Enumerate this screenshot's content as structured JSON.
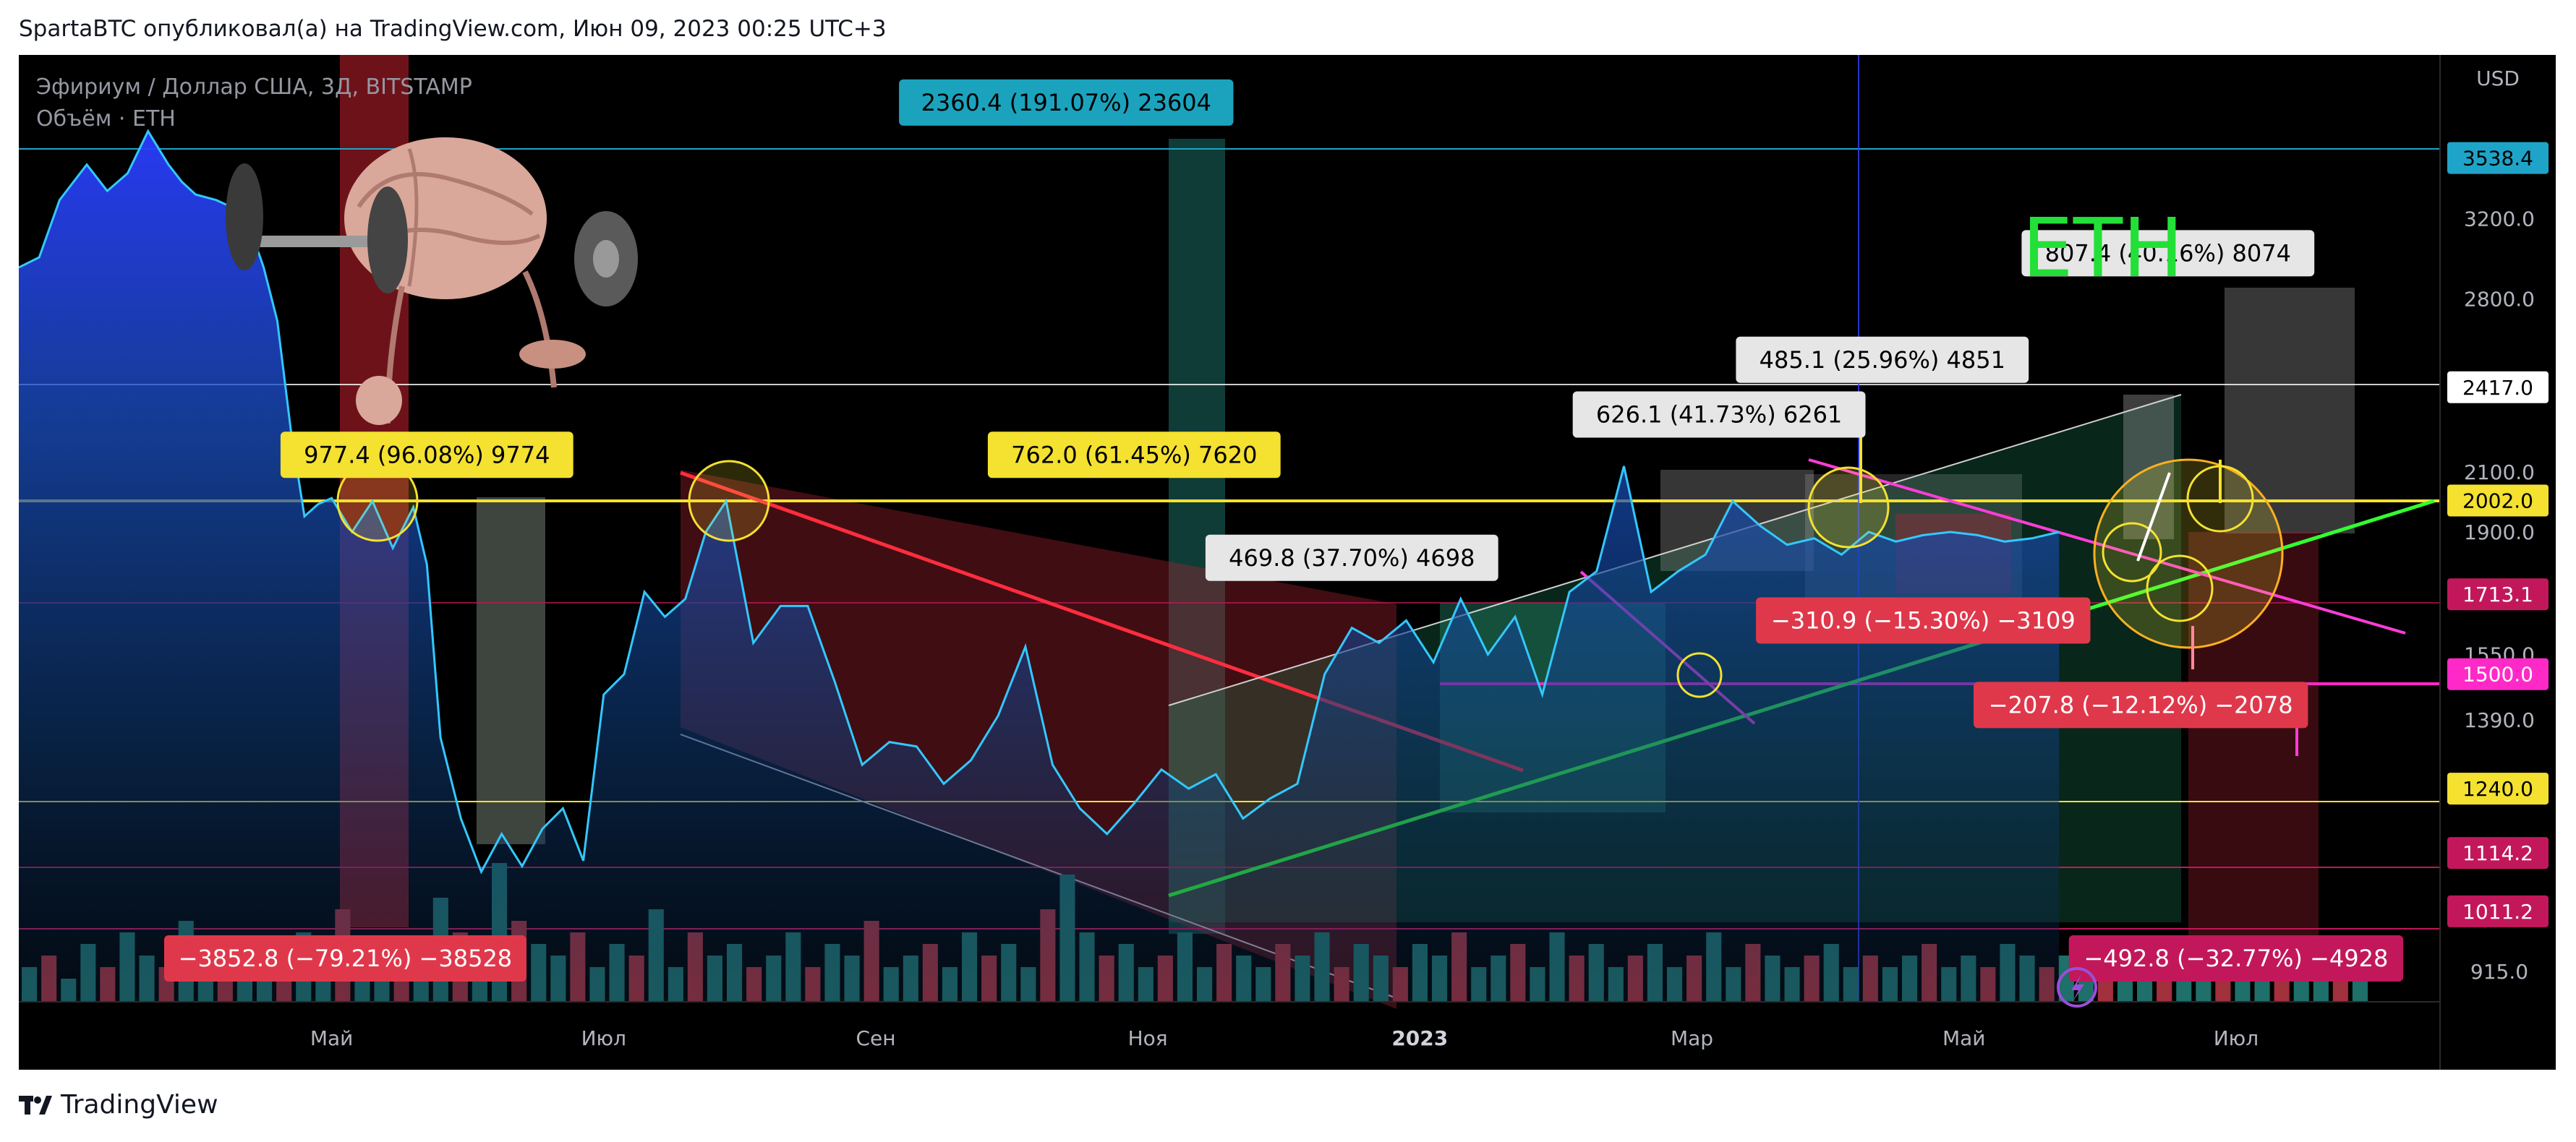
{
  "header": {
    "text": "SpartaBTC опубликовал(а) на TradingView.com, Июн 09, 2023 00:25 UTC+3"
  },
  "footer": {
    "brand": "TradingView"
  },
  "chart": {
    "symbol_line": "Эфириум / Доллар США, 3Д, BITSTAMP",
    "volume_line": "Объём · ETH",
    "currency": "USD",
    "big_label": "ETH",
    "big_label_color": "#22e037"
  },
  "chart_data": {
    "type": "area",
    "symbol": "ETH/USD",
    "y_scale": "log",
    "ylim": [
      870,
      4200
    ],
    "x_ticks": [
      {
        "label": "Май",
        "x": 7.3
      },
      {
        "label": "Июл",
        "x": 9.3
      },
      {
        "label": "Сен",
        "x": 11.3
      },
      {
        "label": "Ноя",
        "x": 13.3
      },
      {
        "label": "2023",
        "x": 15.3
      },
      {
        "label": "Мар",
        "x": 17.3
      },
      {
        "label": "Май",
        "x": 19.3
      },
      {
        "label": "Июл",
        "x": 21.3
      }
    ],
    "y_ticks": [
      915,
      1390,
      1550,
      1900,
      2100,
      2800,
      3200
    ],
    "price_labels": [
      {
        "value": 3538.4,
        "text": "3538.4",
        "bg": "#1ea4c8",
        "fg": "#000000"
      },
      {
        "value": 2417.0,
        "text": "2417.0",
        "bg": "#ffffff",
        "fg": "#000000"
      },
      {
        "value": 2002.0,
        "text": "2002.0",
        "bg": "#f4e130",
        "fg": "#000000"
      },
      {
        "value": 1713.1,
        "text": "1713.1",
        "bg": "#c2185b",
        "fg": "#ffffff"
      },
      {
        "value": 1500.0,
        "text": "1500.0",
        "bg": "#ff29c8",
        "fg": "#ffffff"
      },
      {
        "value": 1240.0,
        "text": "1240.0",
        "bg": "#f4e130",
        "fg": "#000000"
      },
      {
        "value": 1114.2,
        "text": "1114.2",
        "bg": "#c2185b",
        "fg": "#ffffff"
      },
      {
        "value": 1011.2,
        "text": "1011.2",
        "bg": "#c2185b",
        "fg": "#ffffff"
      }
    ],
    "measure_labels": [
      {
        "text": "2360.4 (191.07%) 23604",
        "x": 12.7,
        "y": 3880,
        "bg": "#1ba3bd",
        "fg": "#000000"
      },
      {
        "text": "977.4 (96.08%) 9774",
        "x": 8.0,
        "y": 2160,
        "bg": "#f4e130",
        "fg": "#000000"
      },
      {
        "text": "762.0 (61.45%) 7620",
        "x": 13.2,
        "y": 2160,
        "bg": "#f4e130",
        "fg": "#000000"
      },
      {
        "text": "469.8 (37.70%) 4698",
        "x": 14.8,
        "y": 1820,
        "bg": "#e6e6e6",
        "fg": "#000000"
      },
      {
        "text": "626.1 (41.73%) 6261",
        "x": 17.5,
        "y": 2310,
        "bg": "#e6e6e6",
        "fg": "#000000"
      },
      {
        "text": "485.1 (25.96%) 4851",
        "x": 18.7,
        "y": 2530,
        "bg": "#e6e6e6",
        "fg": "#000000"
      },
      {
        "text": "807.4 (40.16%) 8074",
        "x": 20.8,
        "y": 3020,
        "bg": "#e6e6e6",
        "fg": "#000000"
      },
      {
        "text": "−310.9 (−15.30%) −3109",
        "x": 19.0,
        "y": 1640,
        "bg": "#e0384b",
        "fg": "#ffffff"
      },
      {
        "text": "−207.8 (−12.12%) −2078",
        "x": 20.6,
        "y": 1425,
        "bg": "#e0384b",
        "fg": "#ffffff"
      },
      {
        "text": "−3852.8 (−79.21%) −38528",
        "x": 7.4,
        "y": 935,
        "bg": "#e0384b",
        "fg": "#ffffff"
      },
      {
        "text": "−492.8 (−32.77%) −4928",
        "x": 21.3,
        "y": 935,
        "bg": "#c2185b",
        "fg": "#ffffff"
      }
    ],
    "series": [
      {
        "name": "ETH",
        "x": [
          5.0,
          5.15,
          5.3,
          5.5,
          5.65,
          5.8,
          5.95,
          6.1,
          6.2,
          6.3,
          6.45,
          6.6,
          6.7,
          6.8,
          6.9,
          7.0,
          7.1,
          7.2,
          7.3,
          7.45,
          7.6,
          7.75,
          7.9,
          8.0,
          8.1,
          8.25,
          8.4,
          8.55,
          8.7,
          8.85,
          9.0,
          9.15,
          9.3,
          9.45,
          9.6,
          9.75,
          9.9,
          10.05,
          10.2,
          10.4,
          10.6,
          10.8,
          11.0,
          11.2,
          11.4,
          11.6,
          11.8,
          12.0,
          12.2,
          12.4,
          12.6,
          12.8,
          13.0,
          13.2,
          13.4,
          13.6,
          13.8,
          14.0,
          14.2,
          14.4,
          14.6,
          14.8,
          15.0,
          15.2,
          15.4,
          15.6,
          15.8,
          16.0,
          16.2,
          16.4,
          16.6,
          16.8,
          17.0,
          17.2,
          17.4,
          17.6,
          17.8,
          18.0,
          18.2,
          18.4,
          18.6,
          18.8,
          19.0,
          19.2,
          19.4,
          19.6,
          19.8,
          20.0
        ],
        "values": [
          2950,
          3000,
          3300,
          3500,
          3350,
          3450,
          3700,
          3500,
          3400,
          3330,
          3300,
          3250,
          3150,
          2950,
          2700,
          2250,
          1950,
          1990,
          2010,
          1900,
          2000,
          1850,
          1980,
          1800,
          1350,
          1180,
          1080,
          1150,
          1090,
          1160,
          1200,
          1100,
          1450,
          1500,
          1720,
          1650,
          1700,
          1900,
          2000,
          1580,
          1680,
          1680,
          1480,
          1290,
          1340,
          1330,
          1250,
          1300,
          1400,
          1570,
          1290,
          1200,
          1150,
          1210,
          1280,
          1240,
          1270,
          1180,
          1220,
          1250,
          1500,
          1620,
          1580,
          1640,
          1530,
          1700,
          1550,
          1650,
          1450,
          1720,
          1780,
          2120,
          1720,
          1780,
          1830,
          2000,
          1920,
          1860,
          1880,
          1830,
          1900,
          1870,
          1890,
          1900,
          1890,
          1870,
          1880,
          1900
        ]
      }
    ],
    "volume": [
      3,
      4,
      2,
      5,
      3,
      6,
      4,
      3,
      7,
      2,
      4,
      3,
      5,
      4,
      6,
      3,
      8,
      4,
      3,
      5,
      4,
      9,
      6,
      3,
      12,
      7,
      5,
      4,
      6,
      3,
      5,
      4,
      8,
      3,
      6,
      4,
      5,
      3,
      4,
      6,
      3,
      5,
      4,
      7,
      3,
      4,
      5,
      3,
      6,
      4,
      5,
      3,
      8,
      11,
      6,
      4,
      5,
      3,
      4,
      6,
      3,
      5,
      4,
      3,
      5,
      4,
      6,
      3,
      5,
      4,
      3,
      5,
      4,
      6,
      3,
      4,
      5,
      3,
      6,
      4,
      5,
      3,
      4,
      5,
      3,
      4,
      6,
      3,
      5,
      4,
      3,
      4,
      5,
      3,
      4,
      3,
      4,
      5,
      3,
      4,
      3,
      5,
      4,
      3,
      4,
      3,
      5,
      4,
      3,
      4,
      5,
      3,
      4,
      3,
      4,
      5,
      3,
      4,
      3,
      2
    ]
  }
}
